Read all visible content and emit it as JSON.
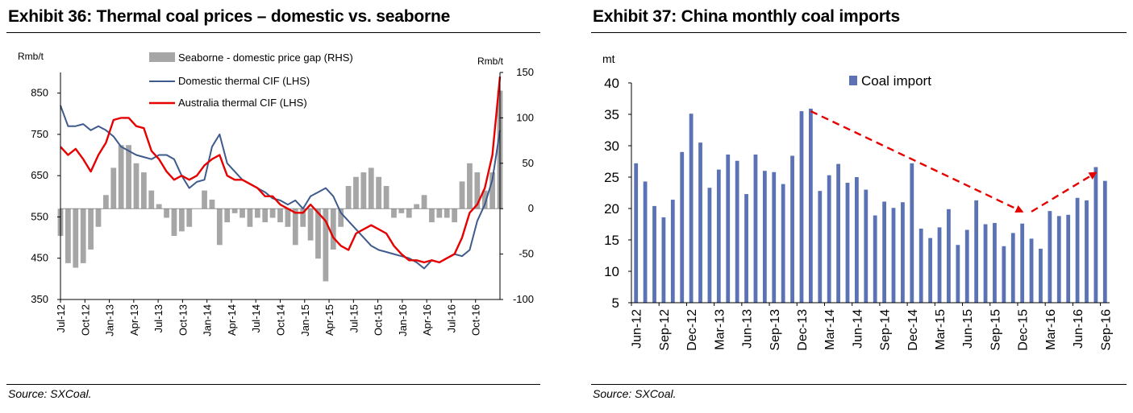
{
  "left": {
    "title": "Exhibit 36: Thermal coal prices – domestic vs. seaborne",
    "source": "Source: SXCoal."
  },
  "right": {
    "title": "Exhibit 37: China monthly coal imports",
    "source": "Source: SXCoal."
  },
  "colors": {
    "domestic": "#3f5a8c",
    "australia": "#e60000",
    "gap": "#a6a6a6",
    "imports": "#5b73b5",
    "arrow": "#e60000"
  },
  "chart_data": [
    {
      "type": "line",
      "ylabel": "Rmb/t",
      "y2label": "Rmb/t",
      "ylim": [
        350,
        900
      ],
      "y2lim": [
        -100,
        150
      ],
      "yticks": [
        350,
        450,
        550,
        650,
        750,
        850
      ],
      "y2ticks": [
        -100,
        -50,
        0,
        50,
        100,
        150
      ],
      "x_tick_labels": [
        "Jul-12",
        "Oct-12",
        "Jan-13",
        "Apr-13",
        "Jul-13",
        "Oct-13",
        "Jan-14",
        "Apr-14",
        "Jul-14",
        "Oct-14",
        "Jan-15",
        "Apr-15",
        "Jul-15",
        "Oct-15",
        "Jan-16",
        "Apr-16",
        "Jul-16",
        "Oct-16"
      ],
      "legend": [
        "Seaborne - domestic price gap (RHS)",
        "Domestic thermal CIF (LHS)",
        "Australia thermal CIF (LHS)"
      ],
      "series": [
        {
          "name": "Domestic thermal CIF (LHS)",
          "values": [
            820,
            770,
            770,
            775,
            760,
            770,
            760,
            745,
            720,
            710,
            700,
            695,
            690,
            700,
            700,
            690,
            650,
            620,
            635,
            640,
            720,
            750,
            680,
            660,
            640,
            630,
            620,
            610,
            595,
            590,
            580,
            590,
            570,
            600,
            610,
            620,
            600,
            560,
            540,
            520,
            500,
            480,
            470,
            465,
            460,
            455,
            450,
            440,
            425,
            445,
            440,
            450,
            460,
            455,
            470,
            540,
            580,
            640,
            760
          ]
        },
        {
          "name": "Australia thermal CIF (LHS)",
          "values": [
            720,
            700,
            715,
            690,
            660,
            700,
            730,
            785,
            790,
            790,
            770,
            765,
            710,
            690,
            660,
            640,
            650,
            640,
            650,
            675,
            690,
            700,
            650,
            640,
            640,
            630,
            620,
            600,
            600,
            580,
            570,
            560,
            560,
            580,
            560,
            540,
            500,
            480,
            470,
            510,
            520,
            530,
            520,
            510,
            480,
            460,
            445,
            445,
            440,
            445,
            440,
            450,
            460,
            500,
            560,
            580,
            620,
            700,
            890
          ]
        },
        {
          "name": "Seaborne - domestic price gap (RHS)",
          "values": [
            -30,
            -60,
            -65,
            -60,
            -45,
            -20,
            15,
            45,
            70,
            70,
            50,
            40,
            20,
            5,
            -10,
            -30,
            -25,
            -20,
            0,
            20,
            10,
            -40,
            -15,
            -5,
            -10,
            -20,
            -10,
            -15,
            -10,
            -15,
            -20,
            -40,
            -20,
            -35,
            -55,
            -80,
            -45,
            -20,
            25,
            35,
            40,
            45,
            35,
            25,
            -10,
            -5,
            -10,
            5,
            15,
            -15,
            -10,
            -10,
            -15,
            30,
            50,
            40,
            20,
            40,
            130
          ]
        }
      ]
    },
    {
      "type": "bar",
      "title": "China monthly coal imports",
      "ylabel": "mt",
      "ylim": [
        5,
        40
      ],
      "yticks": [
        5,
        10,
        15,
        20,
        25,
        30,
        35,
        40
      ],
      "legend": [
        "Coal import"
      ],
      "x_tick_labels": [
        "Jun-12",
        "Sep-12",
        "Dec-12",
        "Mar-13",
        "Jun-13",
        "Sep-13",
        "Dec-13",
        "Mar-14",
        "Jun-14",
        "Sep-14",
        "Dec-14",
        "Mar-15",
        "Jun-15",
        "Sep-15",
        "Dec-15",
        "Mar-16",
        "Jun-16",
        "Sep-16"
      ],
      "categories": [
        "Jun-12",
        "Jul-12",
        "Aug-12",
        "Sep-12",
        "Oct-12",
        "Nov-12",
        "Dec-12",
        "Jan-13",
        "Feb-13",
        "Mar-13",
        "Apr-13",
        "May-13",
        "Jun-13",
        "Jul-13",
        "Aug-13",
        "Sep-13",
        "Oct-13",
        "Nov-13",
        "Dec-13",
        "Jan-14",
        "Feb-14",
        "Mar-14",
        "Apr-14",
        "May-14",
        "Jun-14",
        "Jul-14",
        "Aug-14",
        "Sep-14",
        "Oct-14",
        "Nov-14",
        "Dec-14",
        "Jan-15",
        "Feb-15",
        "Mar-15",
        "Apr-15",
        "May-15",
        "Jun-15",
        "Jul-15",
        "Aug-15",
        "Sep-15",
        "Oct-15",
        "Nov-15",
        "Dec-15",
        "Jan-16",
        "Feb-16",
        "Mar-16",
        "Apr-16",
        "May-16",
        "Jun-16",
        "Jul-16",
        "Aug-16",
        "Sep-16"
      ],
      "values": [
        27.2,
        24.3,
        20.4,
        18.6,
        21.4,
        29.0,
        35.1,
        30.5,
        23.3,
        26.2,
        28.6,
        27.6,
        22.3,
        28.6,
        26.0,
        25.8,
        23.9,
        28.4,
        35.5,
        35.9,
        22.8,
        25.3,
        27.1,
        24.1,
        25.0,
        23.0,
        18.9,
        21.1,
        20.1,
        21.0,
        27.2,
        16.8,
        15.3,
        17.0,
        19.9,
        14.2,
        16.6,
        21.3,
        17.5,
        17.7,
        14.0,
        16.1,
        17.6,
        15.2,
        13.6,
        19.6,
        18.8,
        19.0,
        21.7,
        21.3,
        26.6,
        24.4
      ],
      "annotations": [
        {
          "type": "dashed-arrow",
          "from": [
            "Jan-14",
            35.5
          ],
          "to": [
            "Dec-15",
            19.5
          ]
        },
        {
          "type": "dashed-arrow",
          "from": [
            "Jan-16",
            19.5
          ],
          "to": [
            "Aug-16",
            25.7
          ]
        }
      ]
    }
  ]
}
